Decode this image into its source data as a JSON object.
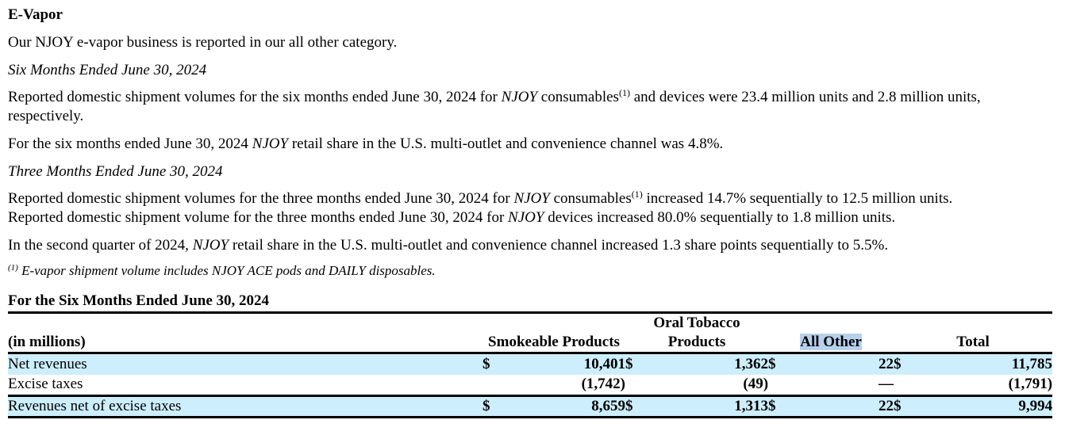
{
  "section": {
    "title": "E-Vapor",
    "intro": "Our NJOY e-vapor business is reported in our all other category."
  },
  "six_months": {
    "subheading": "Six Months Ended June 30, 2024",
    "p1": {
      "a": "Reported domestic shipment volumes for the six months ended June 30, 2024 for ",
      "brand": "NJOY",
      "b": " consumables",
      "sup": "(1)",
      "c": " and devices were 23.4 million units and 2.8 million units, respectively."
    },
    "p2": {
      "a": "For the six months ended June 30, 2024 ",
      "brand": "NJOY",
      "b": " retail share in the U.S. multi-outlet and convenience channel was 4.8%."
    }
  },
  "three_months": {
    "subheading": "Three Months Ended June 30, 2024",
    "p1": {
      "a": "Reported domestic shipment volumes for the three months ended June 30, 2024 for ",
      "brand": "NJOY",
      "b": " consumables",
      "sup": "(1)",
      "c": " increased 14.7% sequentially to 12.5 million units."
    },
    "p2": {
      "a": "Reported domestic shipment volume for the three months ended June 30, 2024 for ",
      "brand": "NJOY",
      "b": " devices increased 80.0% sequentially to 1.8 million units."
    },
    "p3": {
      "a": "In the second quarter of 2024, ",
      "brand": "NJOY",
      "b": " retail share in the U.S. multi-outlet and convenience channel increased 1.3 share points sequentially to 5.5%."
    }
  },
  "footnote": {
    "sup": "(1)",
    "text": " E-vapor shipment volume includes NJOY ACE pods and DAILY disposables."
  },
  "table": {
    "title": "For the Six Months Ended June 30, 2024",
    "headers": {
      "label": "(in millions)",
      "smokeable": "Smokeable Products",
      "oral_line1": "Oral Tobacco",
      "oral_line2": "Products",
      "all_other": "All Other",
      "total": "Total"
    },
    "rows": [
      {
        "label": "Net revenues",
        "cur1": "$",
        "smokeable": "10,401",
        "cur2": "$",
        "oral": "1,362",
        "cur3": "$",
        "all_other": "22",
        "cur4": "$",
        "total": "11,785"
      },
      {
        "label": "Excise taxes",
        "cur1": "",
        "smokeable": "(1,742)",
        "cur2": "",
        "oral": "(49)",
        "cur3": "",
        "all_other": "—",
        "cur4": "",
        "total": "(1,791)"
      },
      {
        "label": "Revenues net of excise taxes",
        "cur1": "$",
        "smokeable": "8,659",
        "cur2": "$",
        "oral": "1,313",
        "cur3": "$",
        "all_other": "22",
        "cur4": "$",
        "total": "9,994"
      }
    ]
  },
  "colors": {
    "row_highlight": "#cdeefc",
    "text_selection": "#b7d1ec"
  }
}
